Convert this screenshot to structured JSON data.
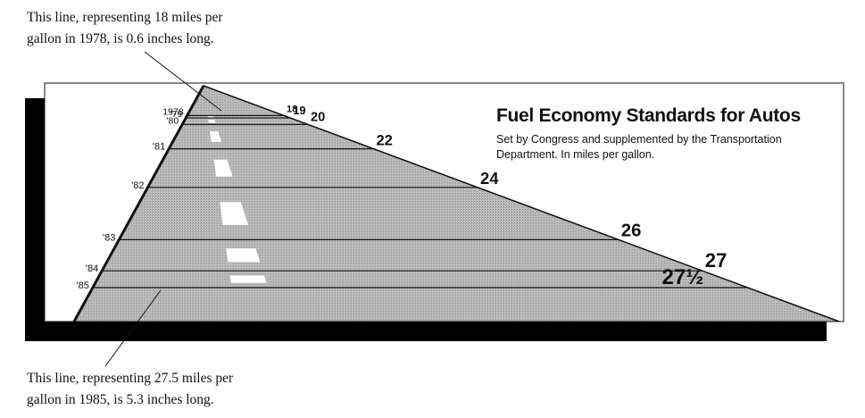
{
  "annotations": {
    "top": "This line, representing 18 miles per\ngallon in 1978, is 0.6 inches long.",
    "bottom": "This line, representing 27.5 miles per\ngallon in 1985, is 5.3 inches long."
  },
  "chart_data": {
    "type": "bar",
    "title": "Fuel Economy Standards for Autos",
    "subtitle": "Set by Congress and supplemented by the Transportation\nDepartment. In miles per gallon.",
    "categories": [
      "1978",
      "'79",
      "'80",
      "'81",
      "'82",
      "'83",
      "'84",
      "'85"
    ],
    "values": [
      18,
      19,
      20,
      22,
      24,
      26,
      27,
      27.5
    ],
    "value_labels": [
      "18",
      "19",
      "20",
      "22",
      "24",
      "26",
      "27",
      "27½"
    ],
    "xlabel": "",
    "ylabel": "",
    "grid": false,
    "legend": "none"
  },
  "colors": {
    "road": "#b9b9b9",
    "shadow": "#000000",
    "ink": "#111111",
    "stripe": "#ffffff"
  }
}
